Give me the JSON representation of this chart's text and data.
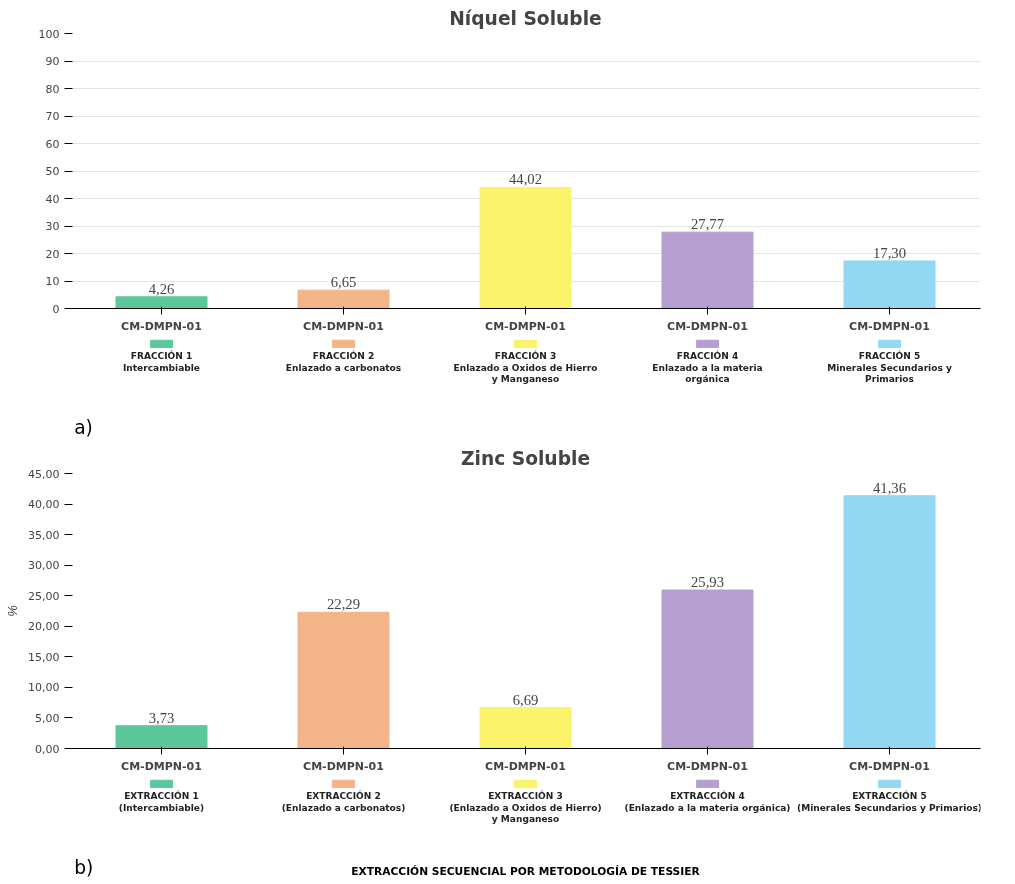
{
  "chart_data": [
    {
      "type": "bar",
      "title": "Níquel Soluble",
      "categories": [
        "CM-DMPN-01",
        "CM-DMPN-01",
        "CM-DMPN-01",
        "CM-DMPN-01",
        "CM-DMPN-01"
      ],
      "ylim": [
        0,
        100
      ],
      "yticks": [
        0,
        10,
        20,
        30,
        40,
        50,
        60,
        70,
        80,
        90,
        100
      ],
      "grid": "y",
      "legend": "bottom",
      "annotations": [
        "a)"
      ],
      "series": [
        {
          "name": "FRACCIÓN 1\nIntercambiable",
          "color": "#5cc79a",
          "values": [
            4.26,
            null,
            null,
            null,
            null
          ],
          "value_labels": [
            "4,26",
            null,
            null,
            null,
            null
          ]
        },
        {
          "name": "FRACCIÓN 2\nEnlazado a carbonatos",
          "color": "#f4b48a",
          "values": [
            null,
            6.65,
            null,
            null,
            null
          ],
          "value_labels": [
            null,
            "6,65",
            null,
            null,
            null
          ]
        },
        {
          "name": "FRACCIÓN 3\nEnlazado a Oxidos de Hierro\ny Manganeso",
          "color": "#fbf46a",
          "values": [
            null,
            null,
            44.02,
            null,
            null
          ],
          "value_labels": [
            null,
            null,
            "44,02",
            null,
            null
          ]
        },
        {
          "name": "FRACCIÓN 4\nEnlazado a la materia\norgánica",
          "color": "#b49fd0",
          "values": [
            null,
            null,
            null,
            27.77,
            null
          ],
          "value_labels": [
            null,
            null,
            null,
            "27,77",
            null
          ]
        },
        {
          "name": "FRACCIÓN 5\nMinerales Secundarios y\nPrimarios",
          "color": "#92d8f2",
          "values": [
            null,
            null,
            null,
            null,
            17.3
          ],
          "value_labels": [
            null,
            null,
            null,
            null,
            "17,30"
          ]
        }
      ]
    },
    {
      "type": "bar",
      "title": "Zinc Soluble",
      "ylabel": "%",
      "categories": [
        "CM-DMPN-01",
        "CM-DMPN-01",
        "CM-DMPN-01",
        "CM-DMPN-01",
        "CM-DMPN-01"
      ],
      "ylim": [
        0,
        45
      ],
      "yticks": [
        {
          "value": 0,
          "label": "0,00"
        },
        {
          "value": 5,
          "label": "5,00"
        },
        {
          "value": 10,
          "label": "10,00"
        },
        {
          "value": 15,
          "label": "15,00"
        },
        {
          "value": 20,
          "label": "20,00"
        },
        {
          "value": 25,
          "label": "25,00"
        },
        {
          "value": 30,
          "label": "30,00"
        },
        {
          "value": 35,
          "label": "35,00"
        },
        {
          "value": 40,
          "label": "40,00"
        },
        {
          "value": 45,
          "label": "45,00"
        }
      ],
      "legend": "bottom",
      "annotations": [
        "b)",
        "EXTRACCIÓN SECUENCIAL POR METODOLOGÍA DE TESSIER"
      ],
      "series": [
        {
          "name": "EXTRACCIÓN 1\n(Intercambiable)",
          "color": "#5cc79a",
          "values": [
            3.73,
            null,
            null,
            null,
            null
          ],
          "value_labels": [
            "3,73",
            null,
            null,
            null,
            null
          ]
        },
        {
          "name": "EXTRACCIÓN 2\n(Enlazado a carbonatos)",
          "color": "#f4b48a",
          "values": [
            null,
            22.29,
            null,
            null,
            null
          ],
          "value_labels": [
            null,
            "22,29",
            null,
            null,
            null
          ]
        },
        {
          "name": "EXTRACCIÓN 3\n(Enlazado a Oxidos de Hierro)\ny Manganeso",
          "color": "#fbf46a",
          "values": [
            null,
            null,
            6.69,
            null,
            null
          ],
          "value_labels": [
            null,
            null,
            "6,69",
            null,
            null
          ]
        },
        {
          "name": "EXTRACCIÓN 4\n(Enlazado a la materia orgánica)",
          "color": "#b49fd0",
          "values": [
            null,
            null,
            null,
            25.93,
            null
          ],
          "value_labels": [
            null,
            null,
            null,
            "25,93",
            null
          ]
        },
        {
          "name": "EXTRACCIÓN 5\n(Minerales Secundarios y Primarios)",
          "color": "#92d8f2",
          "values": [
            null,
            null,
            null,
            null,
            41.36
          ],
          "value_labels": [
            null,
            null,
            null,
            null,
            "41,36"
          ]
        }
      ]
    }
  ]
}
